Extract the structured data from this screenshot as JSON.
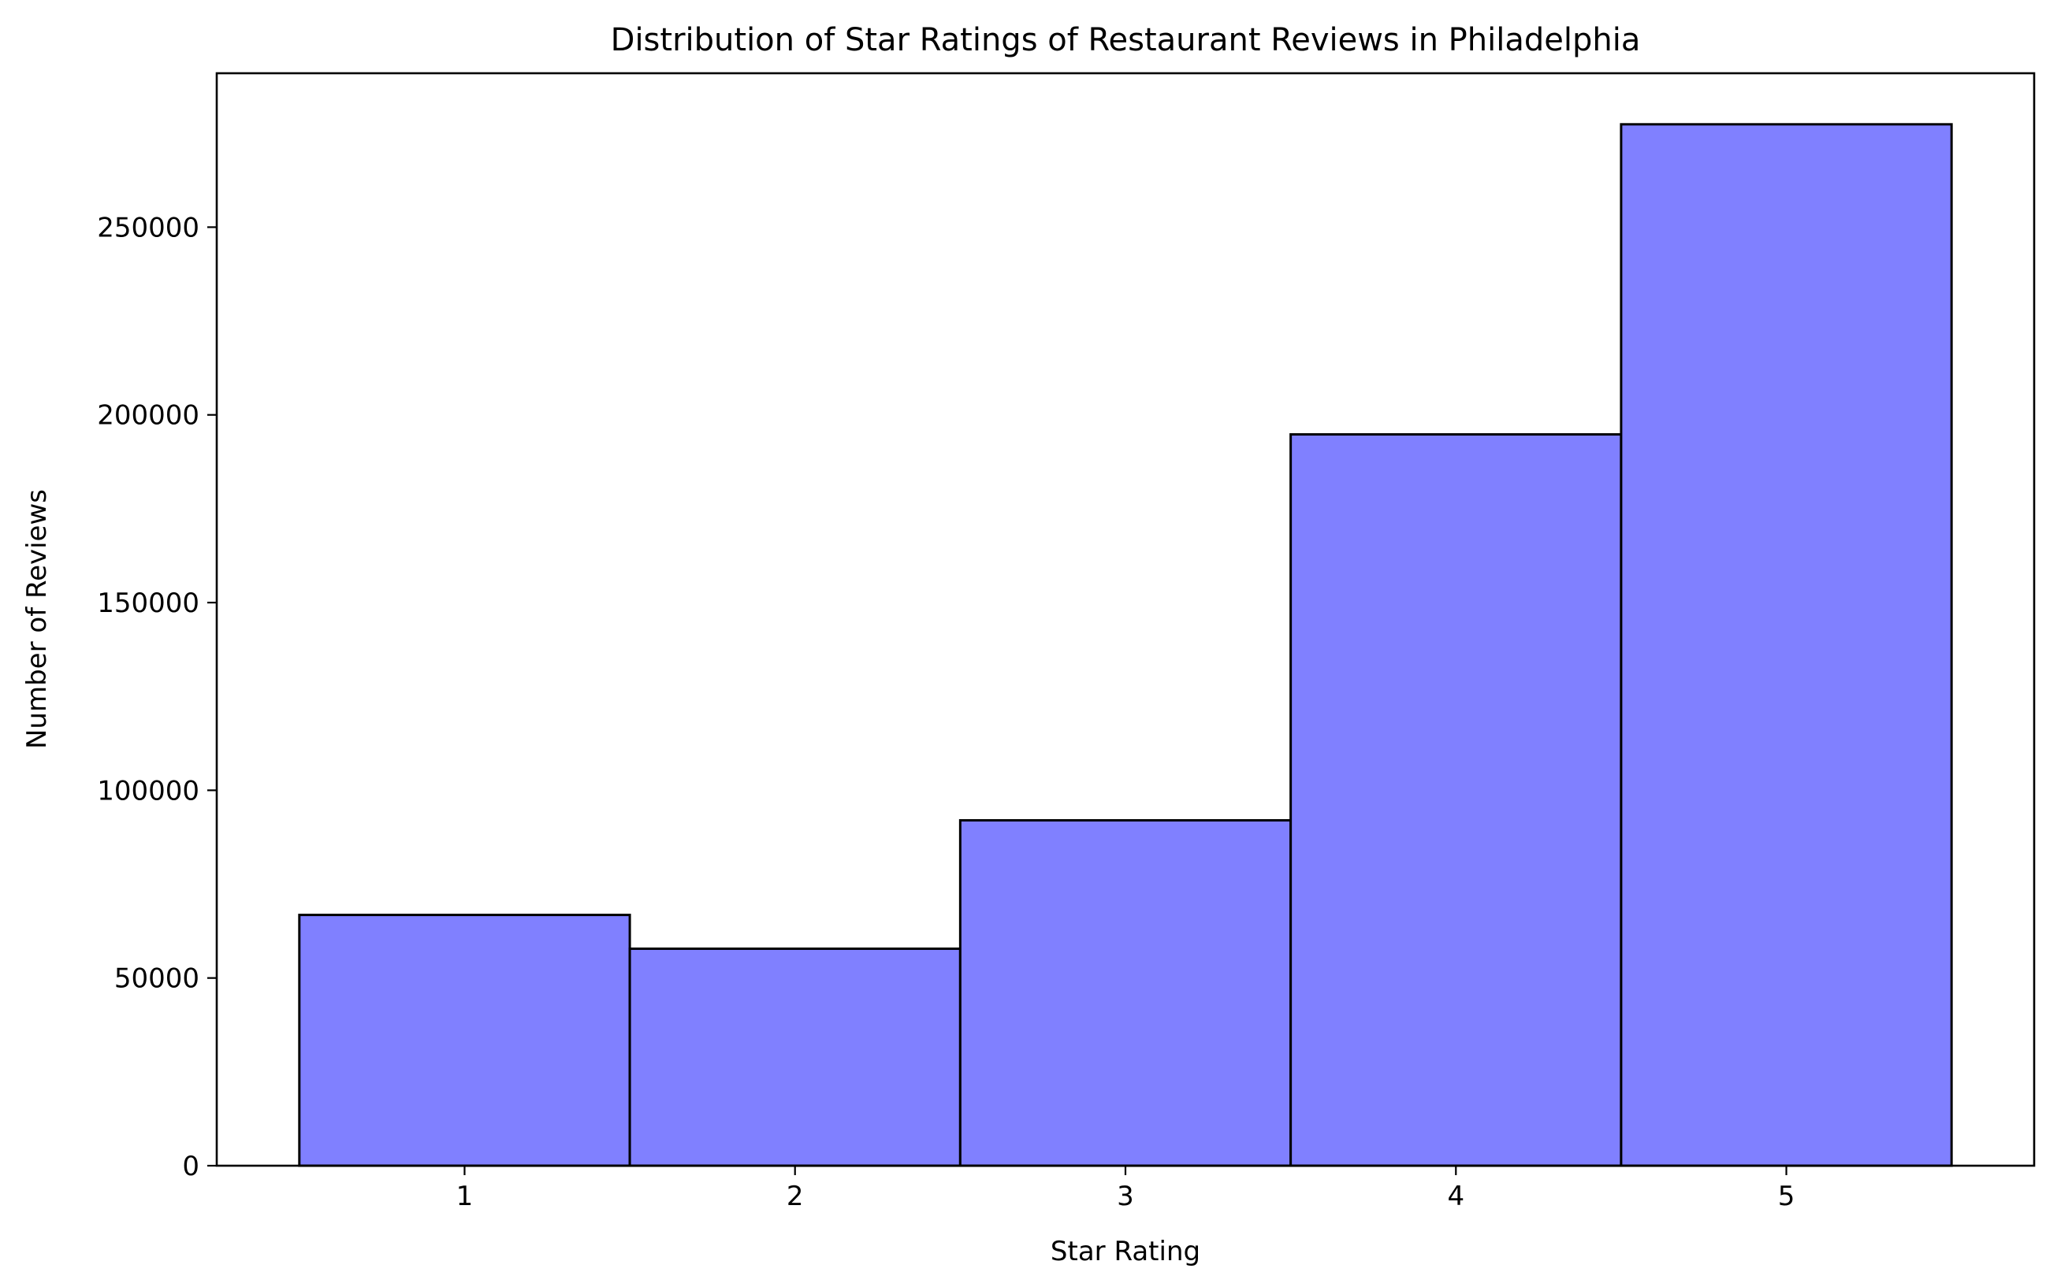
{
  "chart_data": {
    "type": "bar",
    "title": "Distribution of Star Ratings of Restaurant Reviews in Philadelphia",
    "xlabel": "Star Rating",
    "ylabel": "Number of Reviews",
    "categories": [
      "1",
      "2",
      "3",
      "4",
      "5"
    ],
    "values": [
      66800,
      57800,
      92000,
      194800,
      277400
    ],
    "xlim": [
      0.25,
      5.75
    ],
    "ylim": [
      0,
      291000
    ],
    "yticks": [
      0,
      50000,
      100000,
      150000,
      200000,
      250000
    ],
    "ytick_labels": [
      "0",
      "50000",
      "100000",
      "150000",
      "200000",
      "250000"
    ],
    "bar_color": "#8080ff",
    "edge_color": "#000000",
    "grid": false,
    "legend": "none"
  }
}
